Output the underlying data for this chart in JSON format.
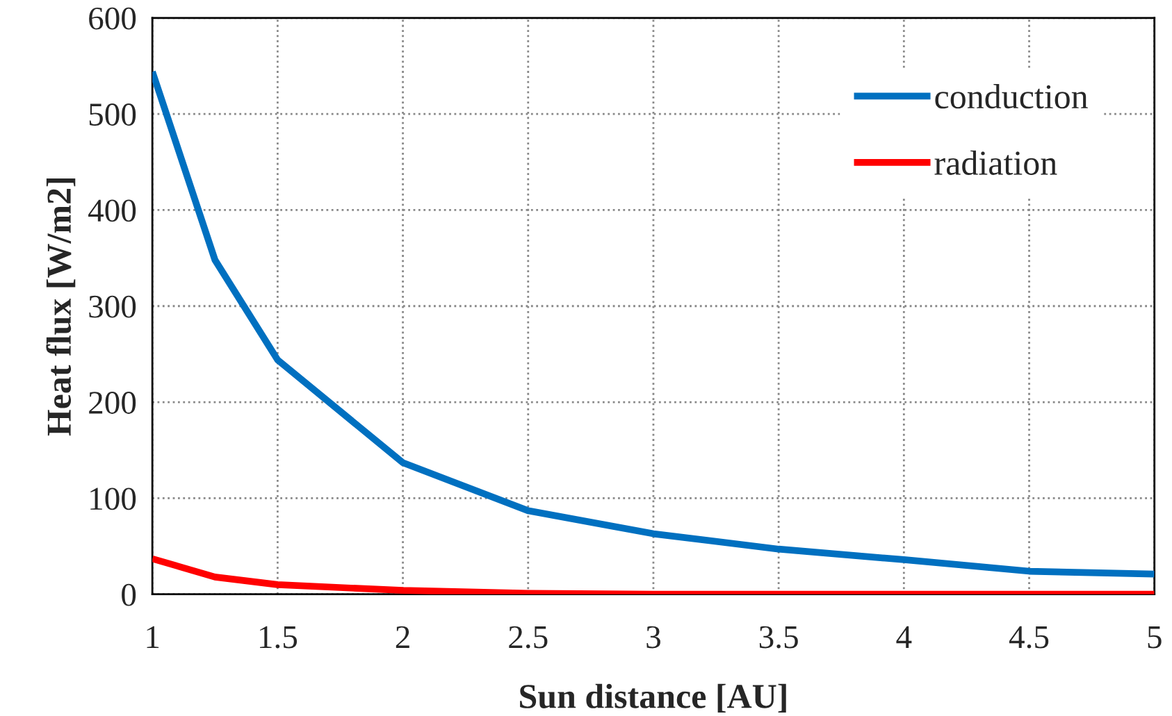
{
  "chart_data": {
    "type": "line",
    "xlabel": "Sun distance [AU]",
    "ylabel": "Heat flux [W/m2]",
    "xlim": [
      1,
      5
    ],
    "xticks": [
      1,
      1.5,
      2,
      2.5,
      3,
      3.5,
      4,
      4.5,
      5
    ],
    "ylim": [
      0,
      600
    ],
    "yticks": [
      0,
      100,
      200,
      300,
      400,
      500,
      600
    ],
    "grid": true,
    "legend": "top right",
    "marker": "none",
    "line_style": "solid",
    "x": [
      1,
      1.25,
      1.5,
      2,
      2.5,
      3,
      3.5,
      4,
      4.5,
      5
    ],
    "series": [
      {
        "name": "conduction",
        "color": "#0070c0",
        "values": [
          544,
          348,
          244,
          137,
          87,
          63,
          47,
          36,
          24,
          21
        ]
      },
      {
        "name": "radiation",
        "color": "#ff0000",
        "values": [
          37,
          18,
          10,
          4,
          1,
          0,
          0,
          0,
          0,
          0
        ]
      }
    ]
  }
}
